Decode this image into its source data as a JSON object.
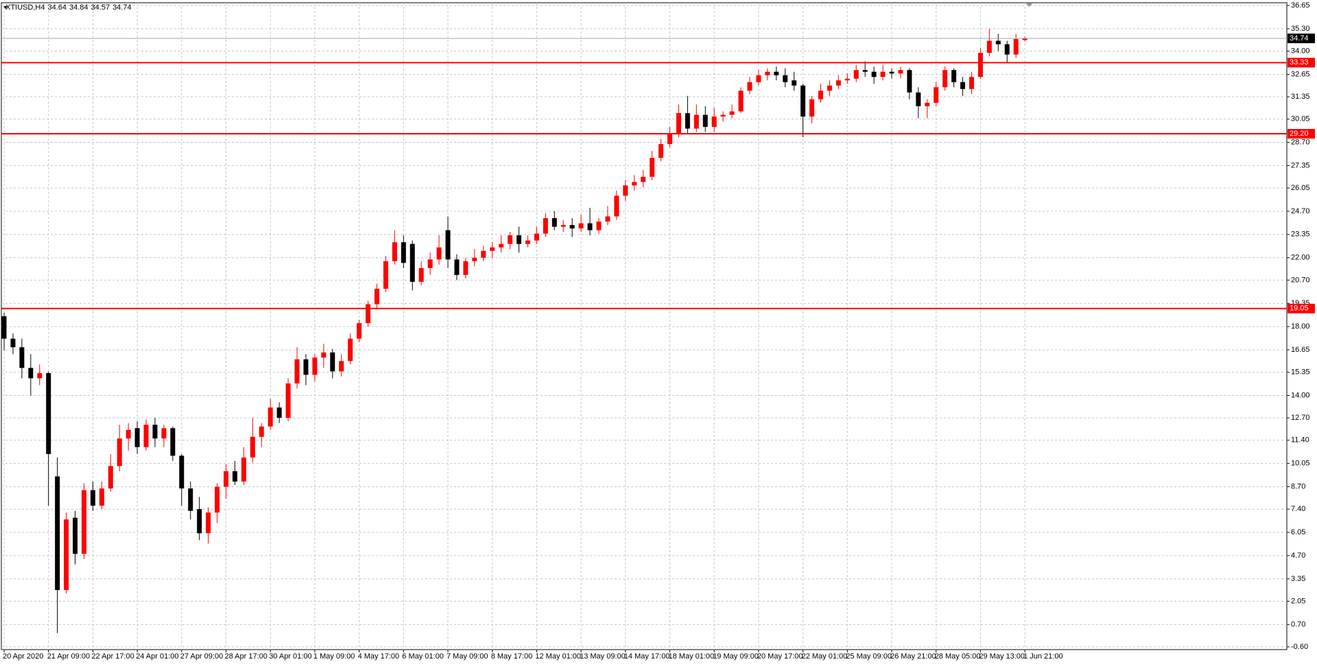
{
  "chart_data": {
    "type": "candlestick",
    "symbol": "XTIUSD,H4",
    "categories": [
      "20 Apr 2020",
      null,
      null,
      null,
      null,
      "21 Apr 09:00",
      null,
      null,
      null,
      null,
      "22 Apr 17:00",
      null,
      null,
      null,
      null,
      "24 Apr 01:00",
      null,
      null,
      null,
      null,
      "27 Apr 09:00",
      null,
      null,
      null,
      null,
      "28 Apr 17:00",
      null,
      null,
      null,
      null,
      "30 Apr 01:00",
      null,
      null,
      null,
      null,
      "1 May 09:00",
      null,
      null,
      null,
      null,
      "4 May 17:00",
      null,
      null,
      null,
      null,
      "6 May 01:00",
      null,
      null,
      null,
      null,
      "7 May 09:00",
      null,
      null,
      null,
      null,
      "8 May 17:00",
      null,
      null,
      null,
      null,
      "12 May 01:00",
      null,
      null,
      null,
      null,
      "13 May 09:00",
      null,
      null,
      null,
      null,
      "14 May 17:00",
      null,
      null,
      null,
      null,
      "18 May 01:00",
      null,
      null,
      null,
      null,
      "19 May 09:00",
      null,
      null,
      null,
      null,
      "20 May 17:00",
      null,
      null,
      null,
      null,
      "22 May 01:00",
      null,
      null,
      null,
      null,
      "25 May 09:00",
      null,
      null,
      null,
      null,
      "26 May 21:00",
      null,
      null,
      null,
      null,
      "28 May 05:00",
      null,
      null,
      null,
      null,
      "29 May 13:00",
      null,
      null,
      null,
      null,
      "1 Jun 21:00"
    ],
    "open": [
      18.6,
      17.3,
      16.8,
      15.6,
      15.0,
      15.3,
      9.3,
      2.7,
      6.9,
      4.8,
      8.5,
      7.6,
      8.6,
      9.9,
      11.5,
      12.1,
      11.0,
      12.3,
      11.5,
      12.1,
      10.5,
      8.6,
      7.4,
      6.0,
      7.2,
      8.7,
      9.6,
      9.0,
      10.4,
      11.6,
      12.2,
      13.3,
      12.7,
      14.7,
      16.1,
      15.2,
      16.2,
      16.5,
      15.4,
      16.0,
      17.3,
      18.2,
      19.3,
      20.2,
      21.8,
      22.9,
      22.8,
      20.6,
      21.4,
      21.9,
      23.6,
      21.9,
      21.0,
      21.8,
      22.0,
      22.4,
      22.6,
      22.8,
      23.3,
      22.8,
      23.0,
      23.4,
      24.3,
      23.8,
      23.9,
      23.7,
      24.0,
      23.6,
      24.1,
      24.4,
      25.6,
      26.2,
      26.4,
      26.7,
      27.8,
      28.6,
      29.2,
      30.4,
      29.5,
      30.3,
      29.6,
      30.2,
      30.3,
      30.5,
      31.7,
      32.2,
      32.6,
      32.8,
      32.6,
      32.3,
      32.0,
      30.2,
      31.2,
      31.7,
      32.0,
      32.3,
      32.4,
      32.9,
      32.8,
      32.5,
      32.8,
      32.7,
      32.9,
      31.6,
      30.8,
      31.0,
      31.9,
      32.9,
      32.2,
      31.8,
      32.5,
      33.9,
      34.6,
      34.4,
      33.8,
      34.64
    ],
    "high": [
      18.8,
      17.6,
      17.3,
      16.4,
      15.8,
      15.4,
      10.4,
      7.2,
      7.3,
      8.9,
      9.0,
      9.0,
      10.6,
      12.3,
      12.4,
      12.5,
      12.6,
      12.7,
      12.3,
      12.2,
      10.6,
      9.0,
      8.1,
      7.5,
      8.9,
      10.0,
      10.2,
      11.0,
      12.7,
      12.4,
      13.8,
      13.6,
      15.0,
      16.8,
      16.4,
      16.4,
      17.0,
      16.7,
      16.4,
      17.6,
      18.4,
      19.5,
      20.5,
      22.1,
      23.6,
      23.3,
      23.0,
      21.8,
      22.3,
      23.3,
      24.4,
      22.2,
      22.0,
      22.5,
      22.7,
      22.9,
      23.3,
      23.5,
      23.8,
      23.3,
      23.8,
      24.6,
      24.7,
      24.2,
      24.3,
      24.5,
      24.9,
      24.3,
      25.0,
      25.9,
      26.5,
      26.8,
      27.1,
      28.2,
      28.9,
      29.6,
      30.9,
      31.4,
      30.9,
      30.8,
      30.7,
      30.5,
      30.9,
      31.9,
      32.5,
      32.9,
      33.0,
      33.1,
      33.0,
      32.8,
      32.1,
      31.4,
      32.1,
      32.3,
      32.6,
      32.7,
      33.2,
      33.4,
      33.1,
      33.2,
      33.0,
      33.1,
      33.0,
      31.9,
      31.2,
      32.2,
      33.1,
      33.0,
      32.5,
      32.8,
      34.2,
      35.3,
      35.0,
      34.6,
      35.0,
      34.84
    ],
    "low": [
      16.6,
      16.4,
      15.0,
      14.0,
      14.6,
      7.6,
      0.2,
      2.5,
      4.2,
      4.5,
      7.3,
      7.4,
      8.4,
      9.6,
      10.8,
      10.6,
      10.8,
      11.0,
      11.0,
      10.2,
      7.6,
      6.8,
      5.6,
      5.4,
      6.6,
      8.0,
      8.8,
      8.8,
      10.1,
      11.0,
      12.0,
      12.4,
      12.5,
      14.4,
      14.6,
      14.8,
      15.6,
      15.0,
      15.1,
      15.8,
      17.1,
      18.0,
      19.0,
      20.0,
      21.6,
      21.4,
      20.1,
      20.4,
      21.0,
      21.6,
      21.4,
      20.7,
      20.8,
      21.5,
      21.8,
      22.0,
      22.3,
      22.5,
      22.3,
      22.6,
      22.8,
      23.2,
      23.6,
      23.5,
      23.2,
      23.5,
      23.3,
      23.4,
      23.9,
      24.2,
      25.3,
      25.9,
      26.1,
      26.5,
      27.6,
      28.4,
      29.0,
      29.2,
      29.3,
      29.3,
      29.3,
      29.9,
      30.1,
      30.4,
      31.5,
      32.0,
      32.3,
      32.3,
      31.9,
      31.7,
      29.0,
      29.8,
      31.0,
      31.4,
      31.8,
      32.1,
      32.2,
      32.5,
      32.1,
      32.3,
      32.4,
      32.4,
      31.2,
      30.1,
      30.1,
      30.8,
      31.7,
      31.9,
      31.4,
      31.5,
      32.4,
      33.7,
      34.0,
      33.3,
      33.6,
      34.57
    ],
    "close": [
      17.3,
      16.8,
      15.6,
      15.0,
      15.3,
      10.6,
      2.7,
      6.8,
      4.8,
      8.5,
      7.6,
      8.6,
      9.9,
      11.5,
      12.0,
      11.0,
      12.3,
      11.5,
      12.1,
      10.5,
      8.6,
      7.3,
      6.0,
      7.2,
      8.7,
      9.6,
      9.0,
      10.4,
      11.6,
      12.2,
      13.3,
      12.7,
      14.7,
      16.1,
      15.2,
      16.2,
      16.5,
      15.4,
      16.0,
      17.3,
      18.2,
      19.3,
      20.2,
      21.8,
      22.9,
      21.7,
      20.6,
      21.4,
      21.9,
      22.6,
      21.9,
      21.0,
      21.8,
      22.0,
      22.4,
      22.6,
      22.8,
      23.3,
      22.8,
      23.0,
      23.4,
      24.3,
      23.8,
      23.9,
      23.7,
      24.0,
      23.6,
      24.1,
      24.4,
      25.6,
      26.2,
      26.4,
      26.7,
      27.8,
      28.6,
      29.2,
      30.4,
      29.5,
      30.3,
      29.6,
      30.2,
      30.3,
      30.5,
      31.7,
      32.2,
      32.6,
      32.8,
      32.6,
      32.2,
      32.0,
      30.2,
      31.2,
      31.7,
      32.0,
      32.3,
      32.4,
      32.9,
      32.8,
      32.5,
      32.8,
      32.7,
      32.9,
      31.6,
      30.8,
      31.0,
      31.9,
      32.9,
      32.2,
      31.8,
      32.5,
      33.9,
      34.6,
      34.4,
      33.8,
      34.7,
      34.74
    ],
    "up_color": "#ff0000",
    "down_color": "#000000",
    "ylim": [
      -0.6,
      36.65
    ],
    "yticks": [
      36.65,
      {
        "value": 35.3,
        "label": "35.30"
      },
      {
        "value": 34,
        "label": "34.00"
      },
      32.65,
      31.35,
      30.05,
      {
        "value": 28.7,
        "label": "28.70"
      },
      27.35,
      26.05,
      {
        "value": 24.7,
        "label": "24.70"
      },
      23.35,
      {
        "value": 22,
        "label": "22.00"
      },
      {
        "value": 20.7,
        "label": "20.70"
      },
      19.35,
      {
        "value": 18,
        "label": "18.00"
      },
      16.65,
      15.35,
      {
        "value": 14,
        "label": "14.00"
      },
      {
        "value": 12.7,
        "label": "12.70"
      },
      {
        "value": 11.4,
        "label": "11.40"
      },
      10.05,
      {
        "value": 8.7,
        "label": "8.70"
      },
      {
        "value": 7.4,
        "label": "7.40"
      },
      6.05,
      {
        "value": 4.7,
        "label": "4.70"
      },
      3.35,
      2.05,
      {
        "value": 0.7,
        "label": "0.70"
      },
      {
        "value": -0.6,
        "label": "-0.60"
      }
    ],
    "grid": true,
    "levels": [
      33.33,
      {
        "value": 29.2,
        "label": "29.20"
      },
      19.05
    ],
    "level_color": "#ff0000",
    "price_line_color": "#9aa6b8"
  }
}
